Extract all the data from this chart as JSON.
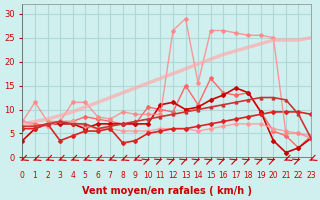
{
  "background_color": "#d0f0f0",
  "grid_color": "#b0d8d8",
  "xlabel": "Vent moyen/en rafales ( km/h )",
  "xlabel_color": "#cc0000",
  "tick_color": "#cc0000",
  "ylim": [
    0,
    32
  ],
  "xlim": [
    0,
    23
  ],
  "yticks": [
    0,
    5,
    10,
    15,
    20,
    25,
    30
  ],
  "xticks": [
    0,
    1,
    2,
    3,
    4,
    5,
    6,
    7,
    8,
    9,
    10,
    11,
    12,
    13,
    14,
    15,
    16,
    17,
    18,
    19,
    20,
    21,
    22,
    23
  ],
  "series": [
    {
      "x": [
        0,
        1,
        2,
        3,
        4,
        5,
        6,
        7,
        8,
        9,
        10,
        11,
        12,
        13,
        14,
        15,
        16,
        17,
        18,
        19,
        20,
        21,
        22,
        23
      ],
      "y": [
        7.5,
        7.0,
        6.5,
        7.5,
        7.5,
        8.5,
        8.0,
        7.5,
        7.0,
        7.0,
        10.5,
        10.0,
        9.5,
        15.0,
        11.0,
        16.5,
        13.5,
        13.0,
        13.5,
        9.5,
        5.5,
        4.5,
        2.0,
        4.5
      ],
      "color": "#ff6666",
      "marker": "D",
      "markersize": 2,
      "linewidth": 1.0,
      "alpha": 1.0
    },
    {
      "x": [
        0,
        1,
        2,
        3,
        4,
        5,
        6,
        7,
        8,
        9,
        10,
        11,
        12,
        13,
        14,
        15,
        16,
        17,
        18,
        19,
        20,
        21,
        22,
        23
      ],
      "y": [
        3.5,
        6.0,
        7.0,
        7.0,
        7.0,
        6.0,
        7.0,
        7.0,
        7.0,
        7.0,
        7.0,
        11.0,
        11.5,
        10.0,
        10.5,
        12.0,
        13.0,
        14.5,
        13.5,
        9.5,
        3.5,
        1.0,
        2.0,
        4.0
      ],
      "color": "#cc0000",
      "marker": "D",
      "markersize": 2,
      "linewidth": 1.2,
      "alpha": 1.0
    },
    {
      "x": [
        0,
        1,
        2,
        3,
        4,
        5,
        6,
        7,
        8,
        9,
        10,
        11,
        12,
        13,
        14,
        15,
        16,
        17,
        18,
        19,
        20,
        21,
        22,
        23
      ],
      "y": [
        7.5,
        6.5,
        6.5,
        7.5,
        7.5,
        6.5,
        6.0,
        6.0,
        5.5,
        5.5,
        5.5,
        6.0,
        6.0,
        6.0,
        5.5,
        6.0,
        6.5,
        7.0,
        7.0,
        7.0,
        6.0,
        5.5,
        5.0,
        4.5
      ],
      "color": "#ff9999",
      "marker": "D",
      "markersize": 2,
      "linewidth": 1.0,
      "alpha": 0.9
    },
    {
      "x": [
        0,
        1,
        2,
        3,
        4,
        5,
        6,
        7,
        8,
        9,
        10,
        11,
        12,
        13,
        14,
        15,
        16,
        17,
        18,
        19,
        20,
        21,
        22,
        23
      ],
      "y": [
        6.0,
        6.0,
        7.0,
        3.5,
        4.5,
        5.5,
        5.5,
        6.0,
        3.0,
        3.5,
        5.0,
        5.5,
        6.0,
        6.0,
        6.5,
        7.0,
        7.5,
        8.0,
        8.5,
        9.0,
        9.5,
        9.5,
        9.5,
        9.0
      ],
      "color": "#dd2222",
      "marker": "D",
      "markersize": 2,
      "linewidth": 1.2,
      "alpha": 1.0
    },
    {
      "x": [
        0,
        1,
        2,
        3,
        4,
        5,
        6,
        7,
        8,
        9,
        10,
        11,
        12,
        13,
        14,
        15,
        16,
        17,
        18,
        19,
        20,
        21,
        22,
        23
      ],
      "y": [
        7.5,
        11.5,
        7.5,
        7.5,
        11.5,
        11.5,
        8.5,
        8.0,
        9.5,
        9.0,
        9.0,
        9.0,
        26.5,
        29.0,
        15.5,
        26.5,
        26.5,
        26.0,
        25.5,
        25.5,
        25.0,
        5.0,
        5.0,
        4.0
      ],
      "color": "#ff8888",
      "marker": "D",
      "markersize": 2,
      "linewidth": 1.0,
      "alpha": 0.85
    },
    {
      "x": [
        0,
        2,
        4,
        6,
        8,
        10,
        12,
        14,
        16,
        18,
        20,
        22,
        23
      ],
      "y": [
        7.0,
        8.0,
        9.5,
        11.5,
        13.5,
        15.5,
        17.5,
        19.5,
        21.5,
        23.0,
        24.5,
        24.5,
        25.0
      ],
      "color": "#ffaaaa",
      "marker": null,
      "markersize": 0,
      "linewidth": 2.5,
      "alpha": 0.7
    },
    {
      "x": [
        0,
        1,
        2,
        3,
        4,
        5,
        6,
        7,
        8,
        9,
        10,
        11,
        12,
        13,
        14,
        15,
        16,
        17,
        18,
        19,
        20,
        21,
        22,
        23
      ],
      "y": [
        6.5,
        6.5,
        7.0,
        7.5,
        7.0,
        7.0,
        6.0,
        6.5,
        7.0,
        7.5,
        8.0,
        8.5,
        9.0,
        9.5,
        10.0,
        10.5,
        11.0,
        11.5,
        12.0,
        12.5,
        12.5,
        12.0,
        9.0,
        4.0
      ],
      "color": "#cc3333",
      "marker": "^",
      "markersize": 2,
      "linewidth": 1.2,
      "alpha": 1.0
    }
  ],
  "wind_arrows": {
    "x": [
      0,
      1,
      2,
      3,
      4,
      5,
      6,
      7,
      8,
      9,
      10,
      11,
      12,
      13,
      14,
      15,
      16,
      17,
      18,
      19,
      20,
      21,
      22,
      23
    ],
    "color": "#cc0000"
  }
}
